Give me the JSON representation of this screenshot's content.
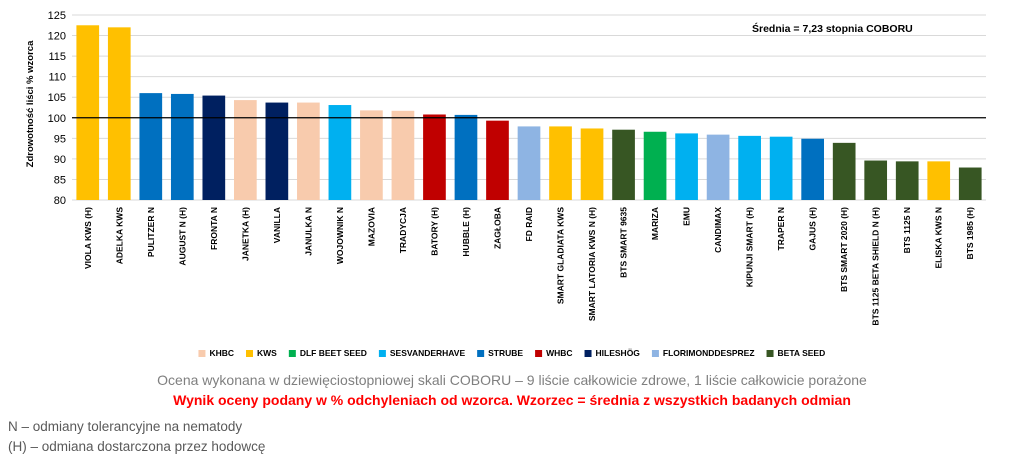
{
  "chart_data": {
    "type": "bar",
    "ylabel": "Zdrowotność liści % wzorca",
    "ylim": [
      80,
      125
    ],
    "yticks": [
      80,
      85,
      90,
      95,
      100,
      105,
      110,
      115,
      120,
      125
    ],
    "reference_value": 100,
    "annotation": "Średnia = 7,23 stopnia COBORU",
    "grid": true,
    "legend_position": "bottom",
    "categories": [
      "VIOLA KWS (H)",
      "ADELKA KWS",
      "PULITZER N",
      "AUGUST N (H)",
      "FRONTA N",
      "JANETKA (H)",
      "VANILLA",
      "JANULKA N",
      "WOJOWNIK N",
      "MAZOVIA",
      "TRADYCJA",
      "BATORY (H)",
      "HUBBLE (H)",
      "ZAGŁOBA",
      "FD RAID",
      "SMART GLADIATA KWS",
      "SMART LATORIA KWS N (H)",
      "BTS SMART 9635",
      "MARIZA",
      "EMU",
      "CANDIMAX",
      "KIPUNJI SMART (H)",
      "TRAPER N",
      "GAJUS (H)",
      "BTS SMART 2020 (H)",
      "BTS 1125 BETA SHIELD N (H)",
      "BTS 1125 N",
      "ELISKA KWS N",
      "BTS 1985 (H)"
    ],
    "values": [
      122.5,
      122.0,
      106.0,
      105.8,
      105.4,
      104.3,
      103.7,
      103.7,
      103.1,
      101.8,
      101.7,
      100.8,
      100.7,
      99.3,
      97.9,
      97.9,
      97.4,
      97.1,
      96.6,
      96.2,
      95.9,
      95.6,
      95.4,
      94.9,
      93.9,
      89.6,
      89.4,
      89.4,
      87.9
    ],
    "breeders": [
      "KWS",
      "KWS",
      "STRUBE",
      "STRUBE",
      "HILESHÖG",
      "KHBC",
      "HILESHÖG",
      "KHBC",
      "SESVANDERHAVE",
      "KHBC",
      "KHBC",
      "WHBC",
      "STRUBE",
      "WHBC",
      "FLORIMONDDESPREZ",
      "KWS",
      "KWS",
      "BETA SEED",
      "DLF BEET SEED",
      "SESVANDERHAVE",
      "FLORIMONDDESPREZ",
      "SESVANDERHAVE",
      "SESVANDERHAVE",
      "STRUBE",
      "BETA SEED",
      "BETA SEED",
      "BETA SEED",
      "KWS",
      "BETA SEED"
    ],
    "legend": [
      {
        "name": "KHBC",
        "color": "#f8cbad"
      },
      {
        "name": "KWS",
        "color": "#ffc000"
      },
      {
        "name": "DLF BEET SEED",
        "color": "#00b050"
      },
      {
        "name": "SESVANDERHAVE",
        "color": "#00b0f0"
      },
      {
        "name": "STRUBE",
        "color": "#0070c0"
      },
      {
        "name": "WHBC",
        "color": "#c00000"
      },
      {
        "name": "HILESHÖG",
        "color": "#002060"
      },
      {
        "name": "FLORIMONDDESPREZ",
        "color": "#8eb4e3"
      },
      {
        "name": "BETA SEED",
        "color": "#375623"
      }
    ]
  },
  "footer": {
    "description": "Ocena wykonana w dziewięciostopniowej skali COBORU – 9 liście całkowicie zdrowe, 1 liście całkowicie porażone",
    "result_note": "Wynik oceny podany w % odchyleniach od wzorca. Wzorzec = średnia z wszystkich badanych odmian"
  },
  "notes": {
    "n": "N – odmiany tolerancyjne na nematody",
    "h": "(H) – odmiana dostarczona przez hodowcę"
  }
}
